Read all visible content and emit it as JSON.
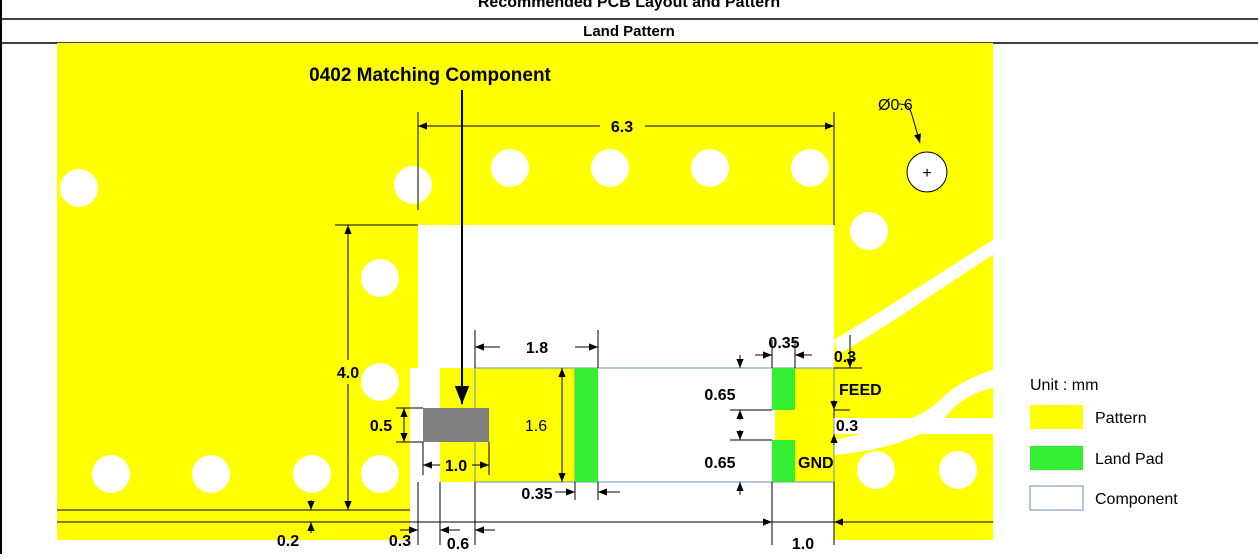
{
  "header": {
    "clipped_title": "Recommended PCB Layout and Pattern",
    "section_title": "Land Pattern"
  },
  "callouts": {
    "matching_component": "0402 Matching Component",
    "hole_diameter": "Ø0.6",
    "hole_marker": "+"
  },
  "dimensions": {
    "overall_width": "6.3",
    "height": "4.0",
    "matching_height": "0.5",
    "matching_width": "1.0",
    "pad_span": "1.8",
    "component_height": "1.6",
    "left_pad_width": "0.35",
    "right_pad_width": "0.35",
    "feed_gap_top": "0.3",
    "feed_height": "0.65",
    "gnd_height": "0.65",
    "feed_gap_mid": "0.3",
    "edge_clearance": "0.2",
    "slot_gap": "0.3",
    "slot_width": "0.6",
    "right_segment": "1.0"
  },
  "pad_labels": {
    "feed": "FEED",
    "gnd": "GND"
  },
  "legend": {
    "unit_label": "Unit : mm",
    "items": [
      {
        "label": "Pattern",
        "color": "#ffff00",
        "border": "#ffff00"
      },
      {
        "label": "Land Pad",
        "color": "#33ee33",
        "border": "#33ee33"
      },
      {
        "label": "Component",
        "color": "#ffffff",
        "border": "#6a8fc0"
      }
    ]
  },
  "colors": {
    "pattern": "#ffff00",
    "land_pad": "#33ee33",
    "component_outline": "#6a8fc0",
    "matching_component": "#808080"
  }
}
